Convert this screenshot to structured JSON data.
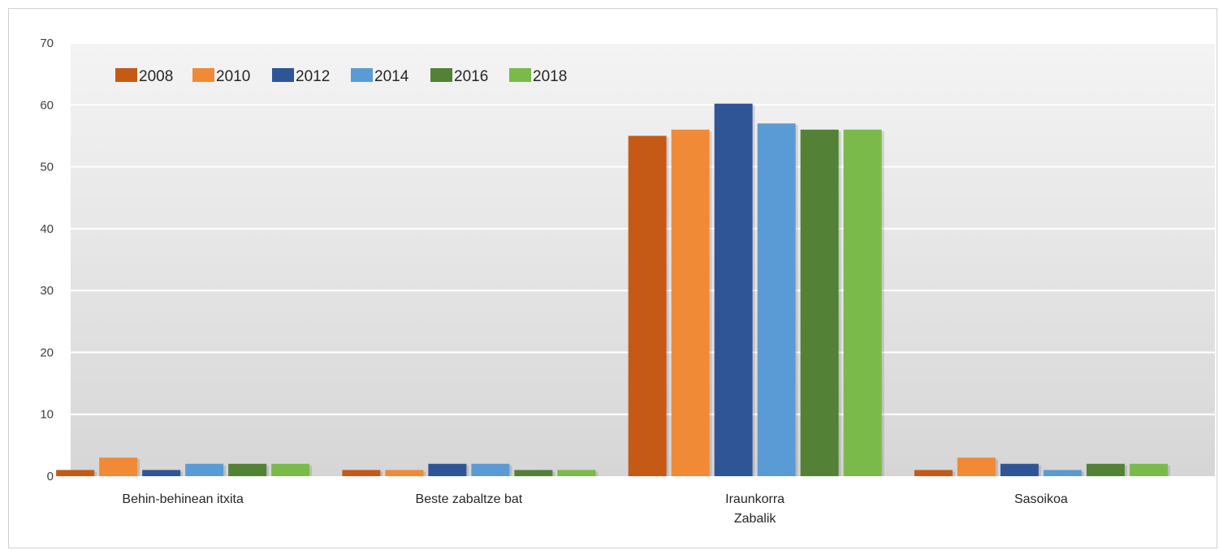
{
  "chart_data": {
    "type": "bar",
    "categories": [
      [
        "Behin-behinean itxita"
      ],
      [
        "Beste zabaltze bat"
      ],
      [
        "Iraunkorra",
        "Zabalik"
      ],
      [
        "Sasoikoa"
      ]
    ],
    "ylim": [
      0,
      70
    ],
    "yticks": [
      0,
      10,
      20,
      30,
      40,
      50,
      60,
      70
    ],
    "grid": true,
    "legend_position": "top-left",
    "series": [
      {
        "name": "2008",
        "color": "#c55a17",
        "values": [
          1,
          1,
          55,
          1
        ]
      },
      {
        "name": "2010",
        "color": "#f08a36",
        "values": [
          3,
          1,
          56,
          3
        ]
      },
      {
        "name": "2012",
        "color": "#2f5597",
        "values": [
          1,
          2,
          60.2,
          2
        ]
      },
      {
        "name": "2014",
        "color": "#5b9bd5",
        "values": [
          2,
          2,
          57,
          1
        ]
      },
      {
        "name": "2016",
        "color": "#538135",
        "values": [
          2,
          1,
          56,
          2
        ]
      },
      {
        "name": "2018",
        "color": "#7aba4a",
        "values": [
          2,
          1,
          56,
          2
        ]
      }
    ]
  }
}
